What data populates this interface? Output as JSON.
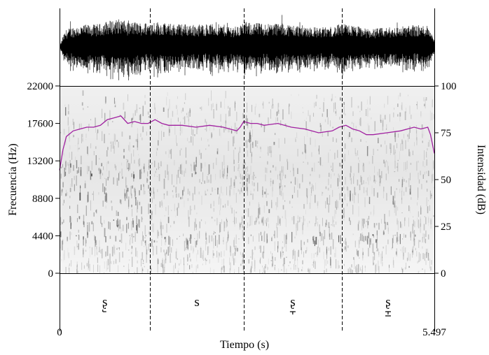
{
  "chart_data": {
    "type": "spectrogram",
    "xlabel": "Tiempo (s)",
    "x_ticks": [
      "0",
      "5.497"
    ],
    "xlim": [
      0,
      5.497
    ],
    "ylabel_left": "Frecuencia (Hz)",
    "y_ticks_left": [
      "0",
      "4400",
      "8800",
      "13200",
      "17600",
      "22000"
    ],
    "ylim_left": [
      0,
      22000
    ],
    "ylabel_right": "Intensidad (dB)",
    "y_ticks_right": [
      "0",
      "25",
      "50",
      "75",
      "100"
    ],
    "ylim_right": [
      0,
      100
    ],
    "boundaries_s": [
      1.33,
      2.7,
      4.14
    ],
    "segments": [
      {
        "label": "ʂ",
        "start": 0,
        "end": 1.33,
        "diacritic": "retracted"
      },
      {
        "label": "s",
        "start": 1.33,
        "end": 2.7,
        "diacritic": ""
      },
      {
        "label": "ʂ",
        "start": 2.7,
        "end": 4.14,
        "diacritic": "lowered"
      },
      {
        "label": "ʂ",
        "start": 4.14,
        "end": 5.497,
        "diacritic": "lowered-retracted"
      }
    ],
    "intensity_curve": {
      "color": "#a020a0",
      "x": [
        0,
        0.05,
        0.1,
        0.2,
        0.3,
        0.4,
        0.5,
        0.6,
        0.7,
        0.8,
        0.9,
        1.0,
        1.1,
        1.2,
        1.3,
        1.4,
        1.5,
        1.6,
        1.8,
        2.0,
        2.2,
        2.4,
        2.6,
        2.65,
        2.7,
        2.8,
        2.9,
        3.0,
        3.2,
        3.4,
        3.6,
        3.8,
        4.0,
        4.1,
        4.2,
        4.3,
        4.4,
        4.5,
        4.6,
        4.8,
        5.0,
        5.2,
        5.3,
        5.4,
        5.44,
        5.497
      ],
      "y": [
        55,
        66,
        73,
        76,
        77,
        78,
        78,
        79,
        82,
        83,
        84,
        80,
        81,
        80,
        80,
        82,
        80,
        79,
        79,
        78,
        79,
        78,
        76,
        78,
        81,
        80,
        80,
        79,
        80,
        78,
        77,
        75,
        76,
        78,
        79,
        77,
        76,
        74,
        74,
        75,
        76,
        78,
        77,
        78,
        74,
        64
      ]
    },
    "series": [
      {
        "name": "",
        "type": "waveform",
        "color": "#000000"
      },
      {
        "name": "",
        "type": "spectrogram",
        "color": "#000000"
      }
    ]
  }
}
